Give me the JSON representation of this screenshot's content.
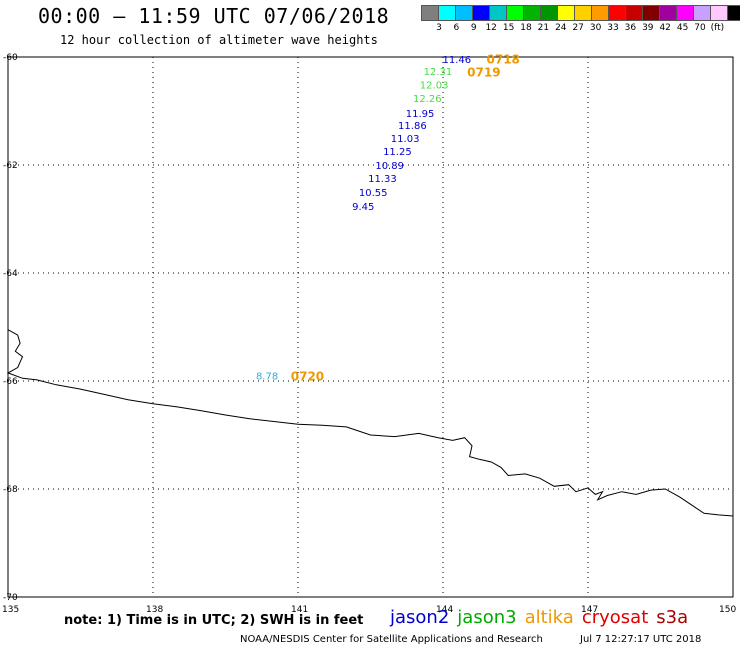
{
  "header": {
    "title": "00:00 – 11:59 UTC 07/06/2018",
    "subtitle": "12 hour collection of altimeter wave heights"
  },
  "legend": {
    "colors": [
      "#7f7f7f",
      "#00ffff",
      "#00bfff",
      "#0000ff",
      "#00c6c6",
      "#00ff00",
      "#00b400",
      "#009600",
      "#ffff00",
      "#ffd000",
      "#ff9a00",
      "#ff0000",
      "#c80000",
      "#800000",
      "#a000a0",
      "#ff00ff",
      "#c8a0ff",
      "#ffc8ff",
      "#000000"
    ],
    "ticks": [
      "3",
      "6",
      "9",
      "12",
      "15",
      "18",
      "21",
      "24",
      "27",
      "30",
      "33",
      "36",
      "39",
      "42",
      "45",
      "70",
      "(ft)"
    ]
  },
  "axes": {
    "lat_labels": [
      "-60",
      "-62",
      "-64",
      "-66",
      "-68",
      "-70"
    ],
    "lon_labels": [
      "135",
      "138",
      "141",
      "144",
      "147",
      "150"
    ]
  },
  "observations": [
    {
      "value": "11.46",
      "lon": 143.99,
      "lat": -60.04,
      "color": "#0000cc"
    },
    {
      "value": "12.31",
      "lon": 143.6,
      "lat": -60.26,
      "color": "#44dd44"
    },
    {
      "value": "12.03",
      "lon": 143.52,
      "lat": -60.51,
      "color": "#44dd44"
    },
    {
      "value": "12.26",
      "lon": 143.38,
      "lat": -60.76,
      "color": "#44dd44"
    },
    {
      "value": "11.95",
      "lon": 143.23,
      "lat": -61.04,
      "color": "#0000cc"
    },
    {
      "value": "11.86",
      "lon": 143.07,
      "lat": -61.26,
      "color": "#0000cc"
    },
    {
      "value": "11.03",
      "lon": 142.92,
      "lat": -61.5,
      "color": "#0000cc"
    },
    {
      "value": "11.25",
      "lon": 142.76,
      "lat": -61.74,
      "color": "#0000cc"
    },
    {
      "value": "10.89",
      "lon": 142.6,
      "lat": -62.0,
      "color": "#0000cc"
    },
    {
      "value": "11.33",
      "lon": 142.45,
      "lat": -62.24,
      "color": "#0000cc"
    },
    {
      "value": "10.55",
      "lon": 142.26,
      "lat": -62.5,
      "color": "#0000cc"
    },
    {
      "value": "9.45",
      "lon": 142.12,
      "lat": -62.76,
      "color": "#0000cc"
    },
    {
      "value": "8.78",
      "lon": 140.13,
      "lat": -65.9,
      "color": "#33aadd"
    }
  ],
  "time_labels": [
    {
      "text": "0718",
      "lon": 144.9,
      "lat": -60.03,
      "color": "#ee9900"
    },
    {
      "text": "0719",
      "lon": 144.5,
      "lat": -60.27,
      "color": "#ee9900"
    },
    {
      "text": "0720",
      "lon": 140.85,
      "lat": -65.9,
      "color": "#ee9900"
    }
  ],
  "coastline": [
    [
      135.0,
      -65.05
    ],
    [
      135.2,
      -65.15
    ],
    [
      135.25,
      -65.3
    ],
    [
      135.15,
      -65.45
    ],
    [
      135.3,
      -65.55
    ],
    [
      135.2,
      -65.75
    ],
    [
      135.0,
      -65.85
    ],
    [
      135.3,
      -65.95
    ],
    [
      135.6,
      -65.98
    ],
    [
      136.0,
      -66.07
    ],
    [
      136.5,
      -66.15
    ],
    [
      137.0,
      -66.25
    ],
    [
      137.5,
      -66.35
    ],
    [
      138.0,
      -66.42
    ],
    [
      138.5,
      -66.48
    ],
    [
      139.0,
      -66.55
    ],
    [
      139.5,
      -66.63
    ],
    [
      140.0,
      -66.7
    ],
    [
      140.5,
      -66.75
    ],
    [
      141.0,
      -66.8
    ],
    [
      141.5,
      -66.82
    ],
    [
      142.0,
      -66.85
    ],
    [
      142.5,
      -67.0
    ],
    [
      143.0,
      -67.03
    ],
    [
      143.5,
      -66.97
    ],
    [
      143.9,
      -67.05
    ],
    [
      144.2,
      -67.1
    ],
    [
      144.45,
      -67.05
    ],
    [
      144.6,
      -67.2
    ],
    [
      144.55,
      -67.4
    ],
    [
      144.75,
      -67.45
    ],
    [
      145.0,
      -67.5
    ],
    [
      145.2,
      -67.6
    ],
    [
      145.35,
      -67.75
    ],
    [
      145.7,
      -67.72
    ],
    [
      146.0,
      -67.8
    ],
    [
      146.3,
      -67.95
    ],
    [
      146.6,
      -67.92
    ],
    [
      146.75,
      -68.05
    ],
    [
      147.0,
      -67.98
    ],
    [
      147.15,
      -68.1
    ],
    [
      147.3,
      -68.05
    ],
    [
      147.2,
      -68.2
    ],
    [
      147.4,
      -68.12
    ],
    [
      147.7,
      -68.05
    ],
    [
      148.0,
      -68.1
    ],
    [
      148.3,
      -68.02
    ],
    [
      148.6,
      -68.0
    ],
    [
      148.9,
      -68.15
    ],
    [
      149.15,
      -68.3
    ],
    [
      149.4,
      -68.45
    ],
    [
      149.7,
      -68.48
    ],
    [
      150.0,
      -68.5
    ]
  ],
  "footer": {
    "note": "note: 1) Time is in UTC; 2) SWH is in feet",
    "satellites": [
      {
        "name": "jason2",
        "color": "#0000cc"
      },
      {
        "name": "jason3",
        "color": "#00aa00"
      },
      {
        "name": "altika",
        "color": "#ee9900"
      },
      {
        "name": "cryosat",
        "color": "#dd0000"
      },
      {
        "name": "s3a",
        "color": "#aa0000"
      }
    ],
    "credit": "NOAA/NESDIS Center for Satellite Applications and Research",
    "timestamp": "Jul  7 12:27:17 UTC 2018"
  }
}
